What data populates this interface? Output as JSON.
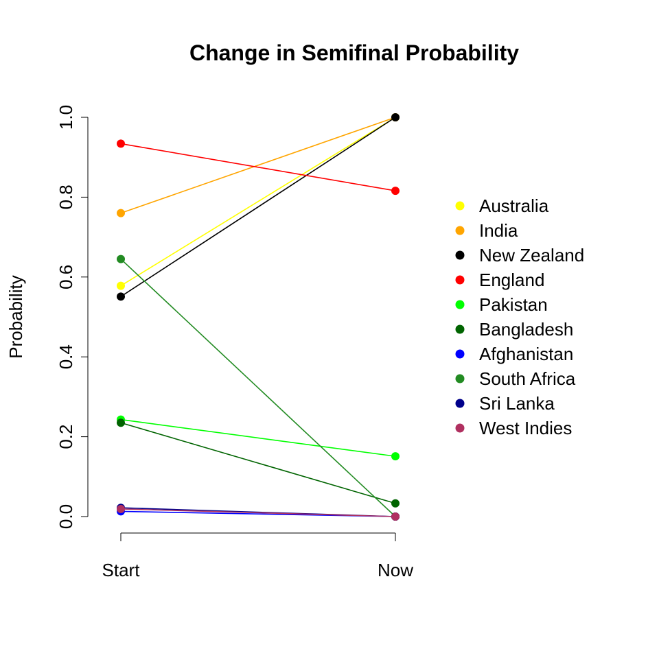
{
  "chart_data": {
    "type": "line",
    "title": "Change in Semifinal Probability",
    "xlabel": "",
    "ylabel": "Probability",
    "categories": [
      "Start",
      "Now"
    ],
    "ylim": [
      0,
      1
    ],
    "yticks": [
      "0.0",
      "0.2",
      "0.4",
      "0.6",
      "0.8",
      "1.0"
    ],
    "ytick_values": [
      0,
      0.2,
      0.4,
      0.6,
      0.8,
      1.0
    ],
    "legend_position": "right",
    "grid": false,
    "series": [
      {
        "name": "Australia",
        "color": "#FFFF00",
        "values": [
          0.578,
          1.0
        ]
      },
      {
        "name": "India",
        "color": "#FFA500",
        "values": [
          0.76,
          1.0
        ]
      },
      {
        "name": "New Zealand",
        "color": "#000000",
        "values": [
          0.551,
          1.0
        ]
      },
      {
        "name": "England",
        "color": "#FF0000",
        "values": [
          0.934,
          0.816
        ]
      },
      {
        "name": "Pakistan",
        "color": "#00FF00",
        "values": [
          0.243,
          0.151
        ]
      },
      {
        "name": "Bangladesh",
        "color": "#006400",
        "values": [
          0.235,
          0.033
        ]
      },
      {
        "name": "Afghanistan",
        "color": "#0000FF",
        "values": [
          0.013,
          0.0
        ]
      },
      {
        "name": "South Africa",
        "color": "#228B22",
        "values": [
          0.645,
          0.0
        ]
      },
      {
        "name": "Sri Lanka",
        "color": "#00008B",
        "values": [
          0.022,
          0.0
        ]
      },
      {
        "name": "West Indies",
        "color": "#B03060",
        "values": [
          0.019,
          0.0
        ]
      }
    ]
  }
}
